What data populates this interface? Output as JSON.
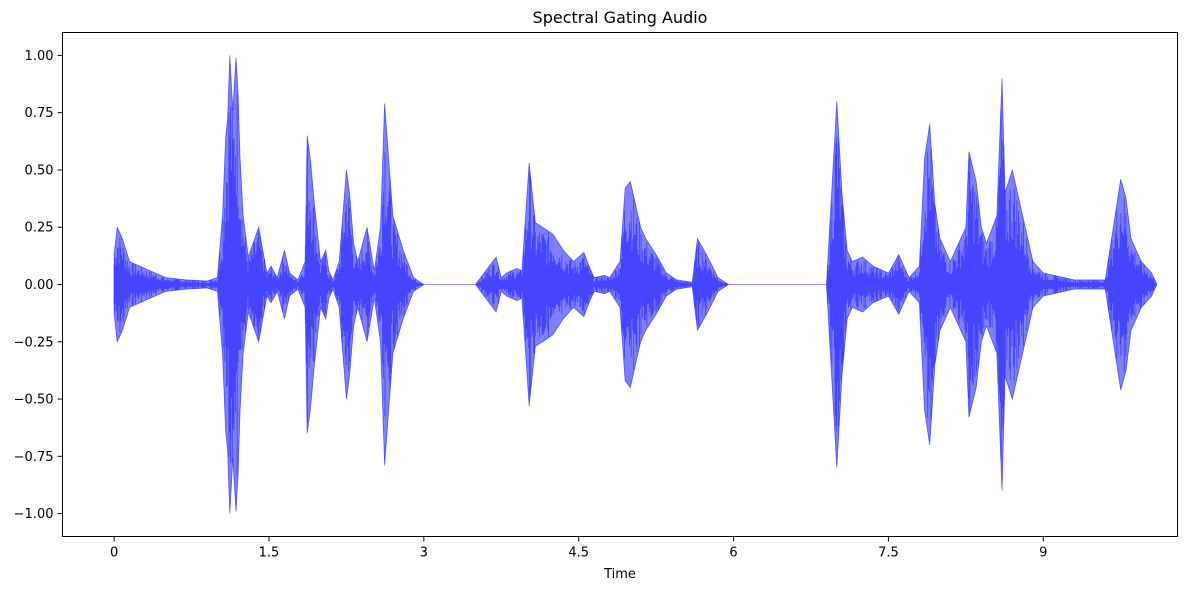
{
  "chart_data": {
    "type": "area",
    "title": "Spectral Gating Audio",
    "xlabel": "Time",
    "ylabel": "",
    "xlim": [
      -0.5,
      10.3
    ],
    "ylim": [
      -1.1,
      1.1
    ],
    "xticks": [
      0,
      1.5,
      3,
      4.5,
      6,
      7.5,
      9
    ],
    "xtick_labels": [
      "0",
      "1.5",
      "3",
      "4.5",
      "6",
      "7.5",
      "9"
    ],
    "yticks": [
      1.0,
      0.75,
      0.5,
      0.25,
      0.0,
      -0.25,
      -0.5,
      -0.75,
      -1.0
    ],
    "ytick_labels": [
      "1.00",
      "0.75",
      "0.50",
      "0.25",
      "0.00",
      "−0.25",
      "−0.50",
      "−0.75",
      "−1.00"
    ],
    "grid": false,
    "legend": "none",
    "series": [
      {
        "fill_color": "#0000ff",
        "fill_opacity": 0.5,
        "envelope": {
          "x": [
            0,
            0.03,
            0.08,
            0.15,
            0.3,
            0.5,
            0.7,
            0.9,
            1.0,
            1.05,
            1.08,
            1.1,
            1.12,
            1.15,
            1.18,
            1.2,
            1.22,
            1.25,
            1.3,
            1.4,
            1.48,
            1.52,
            1.58,
            1.65,
            1.7,
            1.78,
            1.85,
            1.87,
            1.9,
            1.94,
            2.0,
            2.05,
            2.08,
            2.12,
            2.18,
            2.25,
            2.28,
            2.32,
            2.36,
            2.45,
            2.52,
            2.58,
            2.62,
            2.7,
            2.8,
            2.9,
            3.0,
            3.2,
            3.5,
            3.7,
            3.75,
            3.8,
            3.9,
            3.95,
            4.02,
            4.05,
            4.08,
            4.15,
            4.25,
            4.35,
            4.45,
            4.55,
            4.6,
            4.65,
            4.75,
            4.8,
            4.9,
            4.95,
            5.0,
            5.05,
            5.1,
            5.15,
            5.25,
            5.35,
            5.45,
            5.6,
            5.65,
            5.75,
            5.85,
            5.95,
            6.5,
            6.9,
            7.0,
            7.05,
            7.1,
            7.15,
            7.25,
            7.35,
            7.5,
            7.6,
            7.7,
            7.8,
            7.85,
            7.9,
            7.95,
            8.0,
            8.1,
            8.25,
            8.28,
            8.35,
            8.4,
            8.45,
            8.55,
            8.6,
            8.63,
            8.7,
            8.8,
            8.9,
            9.0,
            9.3,
            9.6,
            9.75,
            9.8,
            9.85,
            9.95,
            10.05,
            10.1
          ],
          "top": [
            0.13,
            0.25,
            0.2,
            0.1,
            0.07,
            0.03,
            0.02,
            0.015,
            0.03,
            0.3,
            0.64,
            0.73,
            1.0,
            0.76,
            0.99,
            0.84,
            0.55,
            0.3,
            0.12,
            0.25,
            0.05,
            0.08,
            0.03,
            0.15,
            0.05,
            0.02,
            0.1,
            0.65,
            0.55,
            0.35,
            0.1,
            0.15,
            0.06,
            0.02,
            0.1,
            0.5,
            0.4,
            0.18,
            0.1,
            0.25,
            0.06,
            0.25,
            0.79,
            0.3,
            0.15,
            0.03,
            0.0,
            0.0,
            0.0,
            0.12,
            0.03,
            0.05,
            0.07,
            0.06,
            0.53,
            0.4,
            0.27,
            0.25,
            0.22,
            0.15,
            0.1,
            0.14,
            0.08,
            0.03,
            0.04,
            0.03,
            0.1,
            0.42,
            0.45,
            0.35,
            0.25,
            0.2,
            0.13,
            0.05,
            0.02,
            0.01,
            0.2,
            0.12,
            0.03,
            0.0,
            0.0,
            0.0,
            0.8,
            0.4,
            0.15,
            0.1,
            0.12,
            0.08,
            0.05,
            0.13,
            0.03,
            0.08,
            0.55,
            0.7,
            0.35,
            0.2,
            0.1,
            0.25,
            0.58,
            0.45,
            0.25,
            0.18,
            0.3,
            0.9,
            0.4,
            0.5,
            0.3,
            0.1,
            0.05,
            0.02,
            0.02,
            0.46,
            0.38,
            0.2,
            0.1,
            0.05,
            0.0
          ],
          "bottom": [
            -0.13,
            -0.25,
            -0.2,
            -0.1,
            -0.07,
            -0.03,
            -0.02,
            -0.015,
            -0.03,
            -0.3,
            -0.64,
            -0.73,
            -1.0,
            -0.76,
            -0.99,
            -0.84,
            -0.55,
            -0.3,
            -0.12,
            -0.25,
            -0.05,
            -0.08,
            -0.03,
            -0.15,
            -0.05,
            -0.02,
            -0.1,
            -0.65,
            -0.55,
            -0.35,
            -0.1,
            -0.15,
            -0.06,
            -0.02,
            -0.1,
            -0.5,
            -0.4,
            -0.18,
            -0.1,
            -0.25,
            -0.06,
            -0.25,
            -0.79,
            -0.3,
            -0.15,
            -0.03,
            0.0,
            0.0,
            0.0,
            -0.12,
            -0.03,
            -0.05,
            -0.07,
            -0.06,
            -0.53,
            -0.4,
            -0.27,
            -0.25,
            -0.22,
            -0.15,
            -0.1,
            -0.14,
            -0.08,
            -0.03,
            -0.04,
            -0.03,
            -0.1,
            -0.42,
            -0.45,
            -0.35,
            -0.25,
            -0.2,
            -0.13,
            -0.05,
            -0.02,
            -0.01,
            -0.2,
            -0.12,
            -0.03,
            0.0,
            0.0,
            0.0,
            -0.8,
            -0.4,
            -0.15,
            -0.1,
            -0.12,
            -0.08,
            -0.05,
            -0.13,
            -0.03,
            -0.08,
            -0.55,
            -0.7,
            -0.35,
            -0.2,
            -0.1,
            -0.25,
            -0.58,
            -0.45,
            -0.25,
            -0.18,
            -0.3,
            -0.9,
            -0.4,
            -0.5,
            -0.3,
            -0.1,
            -0.05,
            -0.02,
            -0.02,
            -0.46,
            -0.38,
            -0.2,
            -0.1,
            -0.05,
            0.0
          ]
        }
      }
    ]
  }
}
